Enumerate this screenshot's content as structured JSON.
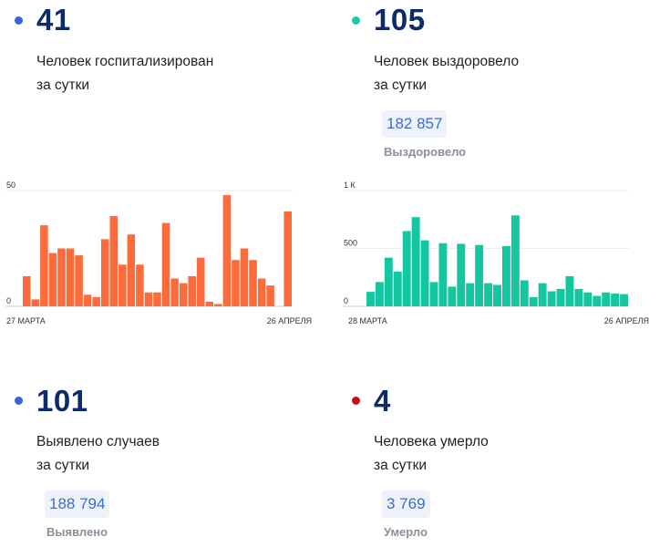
{
  "panels": {
    "hospitalized": {
      "value": "41",
      "desc": "Человек госпитализирован\nза сутки",
      "dot_color": "#3d63dc"
    },
    "recovered": {
      "value": "105",
      "desc": "Человек выздоровело\nза сутки",
      "dot_color": "#1ec8a5",
      "total": "182 857",
      "total_label": "Выздоровело"
    },
    "cases": {
      "value": "101",
      "desc": "Выявлено случаев\nза сутки",
      "dot_color": "#3d63dc",
      "total": "188 794",
      "total_label": "Выявлено"
    },
    "deaths": {
      "value": "4",
      "desc": "Человека умерло\nза сутки",
      "dot_color": "#c0121b",
      "total": "3 769",
      "total_label": "Умерло"
    }
  },
  "chart_data": [
    {
      "type": "bar",
      "title": "Человек госпитализирован за сутки",
      "color": "#fb6b3c",
      "x_start_label": "27 МАРТА",
      "x_end_label": "26 АПРЕЛЯ",
      "y_ticks": [
        "0",
        "50"
      ],
      "ylim": [
        0,
        50
      ],
      "values": [
        13,
        3,
        35,
        23,
        25,
        25,
        22,
        5,
        4,
        29,
        39,
        18,
        31,
        18,
        6,
        6,
        36,
        12,
        10,
        13,
        21,
        2,
        1,
        48,
        20,
        25,
        20,
        12,
        9,
        0,
        41
      ]
    },
    {
      "type": "bar",
      "title": "Человек выздоровело за сутки",
      "color": "#14c7a0",
      "x_start_label": "28 МАРТА",
      "x_end_label": "26 АПРЕЛЯ",
      "y_ticks": [
        "0",
        "500",
        "1 К"
      ],
      "ylim": [
        0,
        1000
      ],
      "values": [
        125,
        210,
        420,
        300,
        650,
        770,
        570,
        210,
        545,
        170,
        540,
        200,
        530,
        200,
        185,
        520,
        785,
        225,
        80,
        200,
        130,
        150,
        260,
        150,
        120,
        90,
        120,
        110,
        105
      ]
    }
  ]
}
